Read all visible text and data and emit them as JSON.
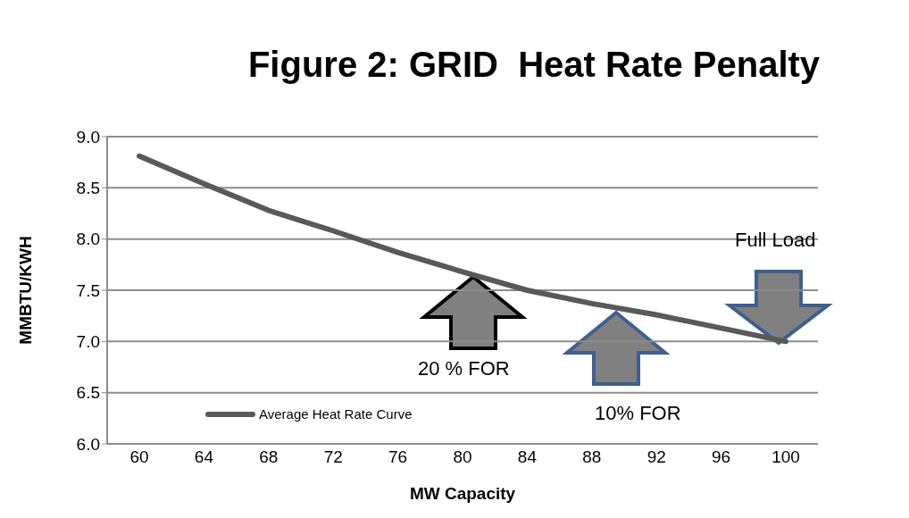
{
  "chart_data": {
    "type": "line",
    "title": "Figure 2: GRID  Heat Rate Penalty",
    "xlabel": "MW Capacity",
    "ylabel": "MMBTU/KWH",
    "categories": [
      "60",
      "64",
      "68",
      "72",
      "76",
      "80",
      "84",
      "88",
      "92",
      "96",
      "100"
    ],
    "series": [
      {
        "name": "Average Heat Rate Curve",
        "color": "#595959",
        "values": [
          8.81,
          8.54,
          8.28,
          8.08,
          7.87,
          7.68,
          7.5,
          7.37,
          7.26,
          7.13,
          7.0
        ]
      }
    ],
    "ylim": [
      6.0,
      9.0
    ],
    "yticks": [
      {
        "value": 6,
        "label": "6.0"
      },
      {
        "value": 6.5,
        "label": "6.5"
      },
      {
        "value": 7,
        "label": "7.0"
      },
      {
        "value": 7.5,
        "label": "7.5"
      },
      {
        "value": 8,
        "label": "8.0"
      },
      {
        "value": 8.5,
        "label": "8.5"
      },
      {
        "value": 9,
        "label": "9.0"
      }
    ],
    "grid": "y",
    "legend": "bottom left",
    "marker": "none",
    "line_style": "solid",
    "annotations": [
      "Full Load",
      "20 % FOR",
      "10% FOR"
    ]
  }
}
